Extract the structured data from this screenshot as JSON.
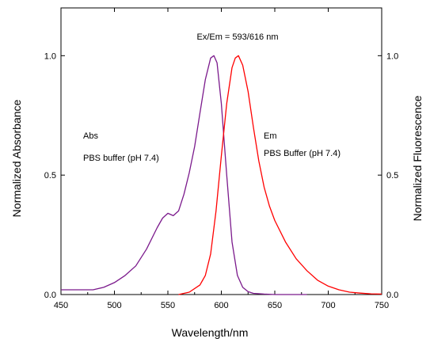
{
  "chart_data": {
    "type": "line",
    "title": "Ex/Em = 593/616 nm",
    "xlabel": "Wavelength/nm",
    "ylabel_left": "Normalized Absorbance",
    "ylabel_right": "Normalized Fluorescence",
    "xlim": [
      450,
      750
    ],
    "ylim": [
      0,
      1.2
    ],
    "x_ticks": [
      "450",
      "500",
      "550",
      "600",
      "650",
      "700",
      "750"
    ],
    "y_ticks": [
      "0.0",
      "0.5",
      "1.0"
    ],
    "y_tick_values": [
      0,
      0.5,
      1.0
    ],
    "grid": false,
    "annotations": [
      {
        "lines": [
          "Abs",
          "PBS buffer (pH 7.4)"
        ],
        "series": "Abs"
      },
      {
        "lines": [
          "Em",
          "PBS Buffer (pH 7.4)"
        ],
        "series": "Em"
      }
    ],
    "series": [
      {
        "name": "Abs",
        "color": "#7b1a8c",
        "axis": "left",
        "x": [
          450,
          470,
          480,
          490,
          500,
          510,
          520,
          530,
          540,
          545,
          550,
          555,
          560,
          565,
          570,
          575,
          580,
          585,
          590,
          593,
          596,
          600,
          605,
          610,
          615,
          620,
          625,
          630,
          640,
          650,
          660,
          680
        ],
        "y": [
          0.02,
          0.02,
          0.02,
          0.03,
          0.05,
          0.08,
          0.12,
          0.19,
          0.28,
          0.32,
          0.34,
          0.33,
          0.35,
          0.42,
          0.51,
          0.62,
          0.76,
          0.9,
          0.99,
          1.0,
          0.97,
          0.8,
          0.5,
          0.22,
          0.08,
          0.03,
          0.012,
          0.005,
          0.002,
          0.0,
          0.0,
          0.0
        ]
      },
      {
        "name": "Em",
        "color": "#ff0000",
        "axis": "right",
        "x": [
          560,
          570,
          580,
          585,
          590,
          595,
          600,
          605,
          610,
          613,
          616,
          620,
          625,
          630,
          635,
          640,
          645,
          650,
          660,
          670,
          680,
          690,
          700,
          710,
          720,
          730,
          740,
          750
        ],
        "y": [
          0.0,
          0.01,
          0.04,
          0.08,
          0.17,
          0.35,
          0.58,
          0.8,
          0.95,
          0.99,
          1.0,
          0.96,
          0.85,
          0.7,
          0.56,
          0.45,
          0.37,
          0.31,
          0.22,
          0.15,
          0.1,
          0.06,
          0.035,
          0.02,
          0.01,
          0.006,
          0.003,
          0.002
        ]
      }
    ]
  }
}
